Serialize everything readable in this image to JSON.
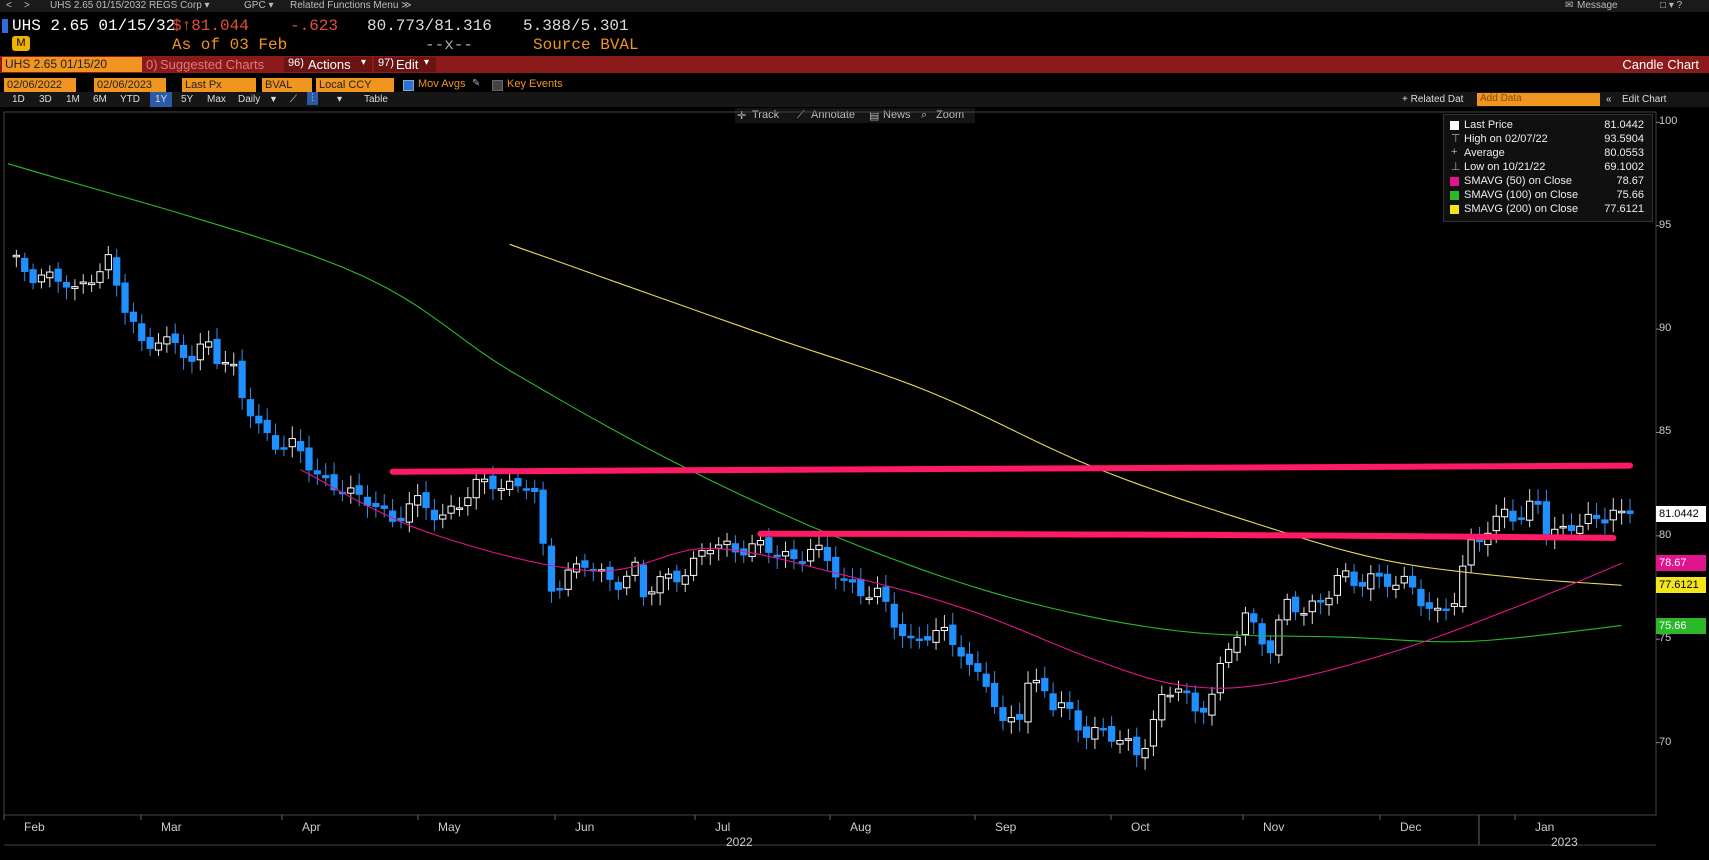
{
  "topbar": {
    "nav_back": "<",
    "nav_fwd": ">",
    "security": "UHS 2.65 01/15/2032 REGS Corp ▾",
    "gpc": "GPC ▾",
    "related": "Related Functions Menu ≫",
    "message": "Message",
    "win_ctrls": "□ ▾  ?"
  },
  "header": {
    "ticker": "UHS 2.65 01/15/32",
    "last_price": "$↑81.044",
    "change": "-.623",
    "bid_ask": "80.773/81.316",
    "yields": "5.388/5.301",
    "as_of": "As of 03 Feb",
    "dash": "--x--",
    "source": "Source BVAL"
  },
  "redbar": {
    "security_box": "UHS 2.65 01/15/20",
    "suggested": "Suggested Charts",
    "suggested_num": "0)",
    "actions_num": "96)",
    "actions": "Actions",
    "edit_num": "97)",
    "edit": "Edit",
    "chart_type": "Candle Chart"
  },
  "controls": {
    "start_date": "02/06/2022",
    "end_date": "02/06/2023",
    "field": "Last Px",
    "source": "BVAL",
    "currency": "Local CCY",
    "mov_avgs": "Mov Avgs",
    "key_events": "Key Events"
  },
  "range_row": {
    "buttons": [
      "1D",
      "3D",
      "1M",
      "6M",
      "YTD",
      "1Y",
      "5Y",
      "Max"
    ],
    "frequency": "Daily",
    "table": "Table",
    "related_data": "+ Related Dat",
    "add_data_placeholder": "Add Data",
    "edit_chart": "Edit Chart"
  },
  "tools": {
    "track": "Track",
    "annotate": "Annotate",
    "news": "News",
    "zoom": "Zoom"
  },
  "legend": {
    "items": [
      {
        "label": "Last Price",
        "value": "81.0442",
        "color": "#ffffff"
      },
      {
        "label": "High on 02/07/22",
        "value": "93.5904",
        "color": ""
      },
      {
        "label": "Average",
        "value": "80.0553",
        "color": ""
      },
      {
        "label": "Low on 10/21/22",
        "value": "69.1002",
        "color": ""
      },
      {
        "label": "SMAVG (50)  on Close",
        "value": "78.67",
        "color": "#e0148c"
      },
      {
        "label": "SMAVG (100)  on Close",
        "value": "75.66",
        "color": "#2bb82b"
      },
      {
        "label": "SMAVG (200)  on Close",
        "value": "77.6121",
        "color": "#f2e51c"
      }
    ]
  },
  "tags": {
    "last": "81.0442",
    "sma50": "78.67",
    "sma200": "77.6121",
    "sma100": "75.66"
  },
  "chart_data": {
    "type": "candlestick",
    "ylim": [
      66.5,
      100.5
    ],
    "y_ticks": [
      70,
      75,
      80,
      85,
      90,
      95,
      100
    ],
    "x_labels": [
      "Feb",
      "Mar",
      "Apr",
      "May",
      "Jun",
      "Jul",
      "Aug",
      "Sep",
      "Oct",
      "Nov",
      "Dec",
      "Jan"
    ],
    "year_labels": [
      "2022",
      "2023"
    ],
    "colors": {
      "up": "#ffffff",
      "down": "#1e90ff",
      "sma50": "#e0148c",
      "sma100": "#2bb82b",
      "sma200": "#e6d85a",
      "trendline": "#ff1a66"
    },
    "close_path": [
      [
        0,
        93.2
      ],
      [
        3,
        92.8
      ],
      [
        6,
        92.4
      ],
      [
        8,
        91.6
      ],
      [
        10,
        92.8
      ],
      [
        12,
        93.3
      ],
      [
        13,
        92.0
      ],
      [
        14,
        90.9
      ],
      [
        15,
        90.1
      ],
      [
        16,
        89.2
      ],
      [
        18,
        89.8
      ],
      [
        20,
        89.0
      ],
      [
        22,
        88.4
      ],
      [
        24,
        89.6
      ],
      [
        25,
        88.9
      ],
      [
        27,
        87.8
      ],
      [
        28,
        86.6
      ],
      [
        30,
        85.3
      ],
      [
        32,
        84.7
      ],
      [
        34,
        84.2
      ],
      [
        36,
        83.4
      ],
      [
        38,
        82.7
      ],
      [
        40,
        82.4
      ],
      [
        42,
        81.5
      ],
      [
        44,
        81.7
      ],
      [
        46,
        80.8
      ],
      [
        48,
        81.4
      ],
      [
        50,
        81.3
      ],
      [
        52,
        81.1
      ],
      [
        54,
        81.6
      ],
      [
        56,
        82.2
      ],
      [
        58,
        82.7
      ],
      [
        60,
        82.5
      ],
      [
        62,
        82.4
      ],
      [
        63,
        81.8
      ],
      [
        64,
        79.2
      ],
      [
        65,
        77.6
      ],
      [
        67,
        78.3
      ],
      [
        69,
        78.6
      ],
      [
        71,
        77.9
      ],
      [
        73,
        78.0
      ],
      [
        75,
        78.4
      ],
      [
        76,
        77.0
      ],
      [
        78,
        77.7
      ],
      [
        80,
        78.3
      ],
      [
        82,
        78.6
      ],
      [
        84,
        79.4
      ],
      [
        86,
        79.5
      ],
      [
        88,
        79.6
      ],
      [
        90,
        79.3
      ],
      [
        92,
        79.1
      ],
      [
        94,
        79.0
      ],
      [
        96,
        79.4
      ],
      [
        98,
        78.6
      ],
      [
        100,
        77.9
      ],
      [
        102,
        77.5
      ],
      [
        104,
        77.0
      ],
      [
        106,
        75.8
      ],
      [
        108,
        75.0
      ],
      [
        110,
        75.3
      ],
      [
        112,
        75.0
      ],
      [
        114,
        74.6
      ],
      [
        115,
        73.8
      ],
      [
        117,
        73.0
      ],
      [
        118,
        71.7
      ],
      [
        119,
        70.5
      ],
      [
        121,
        71.6
      ],
      [
        122,
        73.1
      ],
      [
        124,
        72.6
      ],
      [
        125,
        71.7
      ],
      [
        127,
        71.3
      ],
      [
        129,
        70.7
      ],
      [
        131,
        70.5
      ],
      [
        133,
        69.9
      ],
      [
        135,
        69.6
      ],
      [
        136,
        70.3
      ],
      [
        138,
        72.0
      ],
      [
        140,
        72.6
      ],
      [
        142,
        71.5
      ],
      [
        144,
        72.6
      ],
      [
        146,
        74.3
      ],
      [
        148,
        76.1
      ],
      [
        150,
        75.2
      ],
      [
        151,
        74.8
      ],
      [
        153,
        76.5
      ],
      [
        155,
        76.3
      ],
      [
        157,
        77.0
      ],
      [
        159,
        78.0
      ],
      [
        161,
        77.5
      ],
      [
        163,
        78.1
      ],
      [
        165,
        78.0
      ],
      [
        167,
        77.5
      ],
      [
        169,
        76.9
      ],
      [
        171,
        76.4
      ],
      [
        173,
        77.0
      ],
      [
        175,
        79.3
      ],
      [
        177,
        80.5
      ],
      [
        179,
        81.3
      ],
      [
        181,
        80.7
      ],
      [
        183,
        81.5
      ],
      [
        184,
        80.6
      ],
      [
        186,
        80.3
      ],
      [
        188,
        80.5
      ],
      [
        190,
        80.6
      ],
      [
        192,
        81.6
      ],
      [
        193,
        81.0
      ]
    ],
    "sma50": [
      [
        35,
        83.2
      ],
      [
        50,
        80.2
      ],
      [
        70,
        78.3
      ],
      [
        84,
        79.4
      ],
      [
        100,
        78.1
      ],
      [
        115,
        76.4
      ],
      [
        130,
        74.0
      ],
      [
        140,
        72.8
      ],
      [
        150,
        72.8
      ],
      [
        165,
        74.3
      ],
      [
        180,
        76.5
      ],
      [
        193,
        78.67
      ]
    ],
    "sma100": [
      [
        0,
        98.0
      ],
      [
        40,
        93.0
      ],
      [
        60,
        88.0
      ],
      [
        80,
        83.5
      ],
      [
        100,
        79.8
      ],
      [
        120,
        77.0
      ],
      [
        140,
        75.4
      ],
      [
        160,
        75.1
      ],
      [
        175,
        74.9
      ],
      [
        193,
        75.66
      ]
    ],
    "sma200": [
      [
        60,
        94.1
      ],
      [
        90,
        89.8
      ],
      [
        110,
        87.0
      ],
      [
        130,
        83.3
      ],
      [
        150,
        80.5
      ],
      [
        165,
        78.8
      ],
      [
        180,
        78.0
      ],
      [
        193,
        77.61
      ]
    ],
    "trendlines": [
      {
        "from": [
          46,
          83.1
        ],
        "to": [
          194,
          83.4
        ]
      },
      {
        "from": [
          90,
          80.1
        ],
        "to": [
          192,
          79.9
        ]
      }
    ]
  }
}
